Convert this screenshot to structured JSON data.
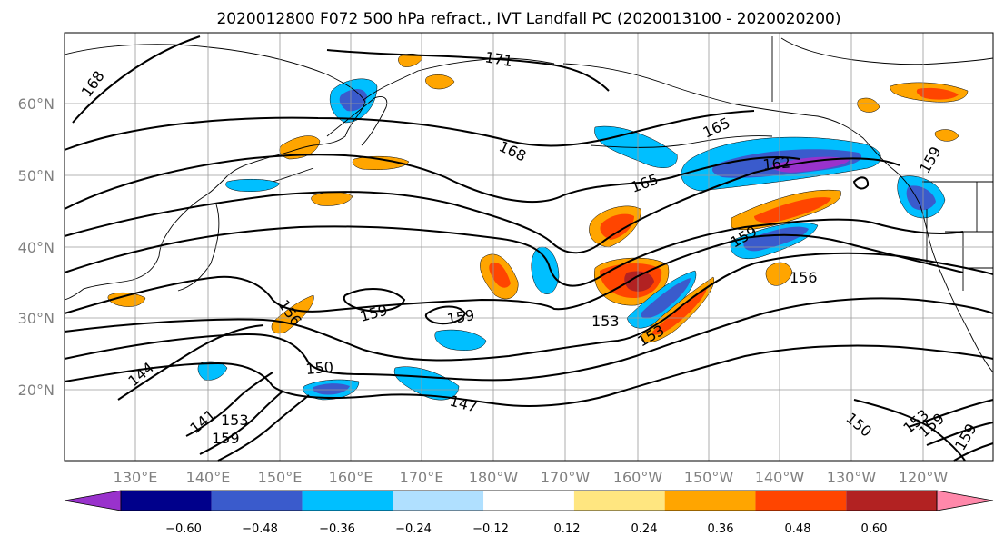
{
  "title": "2020012800 F072 500 hPa refract., IVT Landfall PC (2020013100 - 2020020200)",
  "lat_labels": [
    "60°N",
    "50°N",
    "40°N",
    "30°N",
    "20°N"
  ],
  "lon_labels": [
    "130°E",
    "140°E",
    "150°E",
    "160°E",
    "170°E",
    "180°W",
    "170°W",
    "160°W",
    "150°W",
    "140°W",
    "130°W",
    "120°W"
  ],
  "contour_labels": [
    {
      "text": "168"
    },
    {
      "text": "171"
    },
    {
      "text": "168"
    },
    {
      "text": "165"
    },
    {
      "text": "165"
    },
    {
      "text": "162"
    },
    {
      "text": "159"
    },
    {
      "text": "159"
    },
    {
      "text": "159"
    },
    {
      "text": "159"
    },
    {
      "text": "156"
    },
    {
      "text": "156"
    },
    {
      "text": "153"
    },
    {
      "text": "153"
    },
    {
      "text": "150"
    },
    {
      "text": "150"
    },
    {
      "text": "147"
    },
    {
      "text": "144"
    },
    {
      "text": "141"
    },
    {
      "text": "153"
    },
    {
      "text": "159"
    },
    {
      "text": "153"
    },
    {
      "text": "159"
    },
    {
      "text": "159"
    }
  ],
  "colorbar": {
    "colors": [
      "#9932cc",
      "#00008b",
      "#3a5bcc",
      "#00bfff",
      "#b0e0ff",
      "#ffffff",
      "#ffe680",
      "#ffa500",
      "#ff4500",
      "#b22222",
      "#ff88aa"
    ],
    "tick_labels": [
      "−0.60",
      "−0.48",
      "−0.36",
      "−0.24",
      "−0.12",
      "0.12",
      "0.24",
      "0.36",
      "0.48",
      "0.60"
    ]
  }
}
